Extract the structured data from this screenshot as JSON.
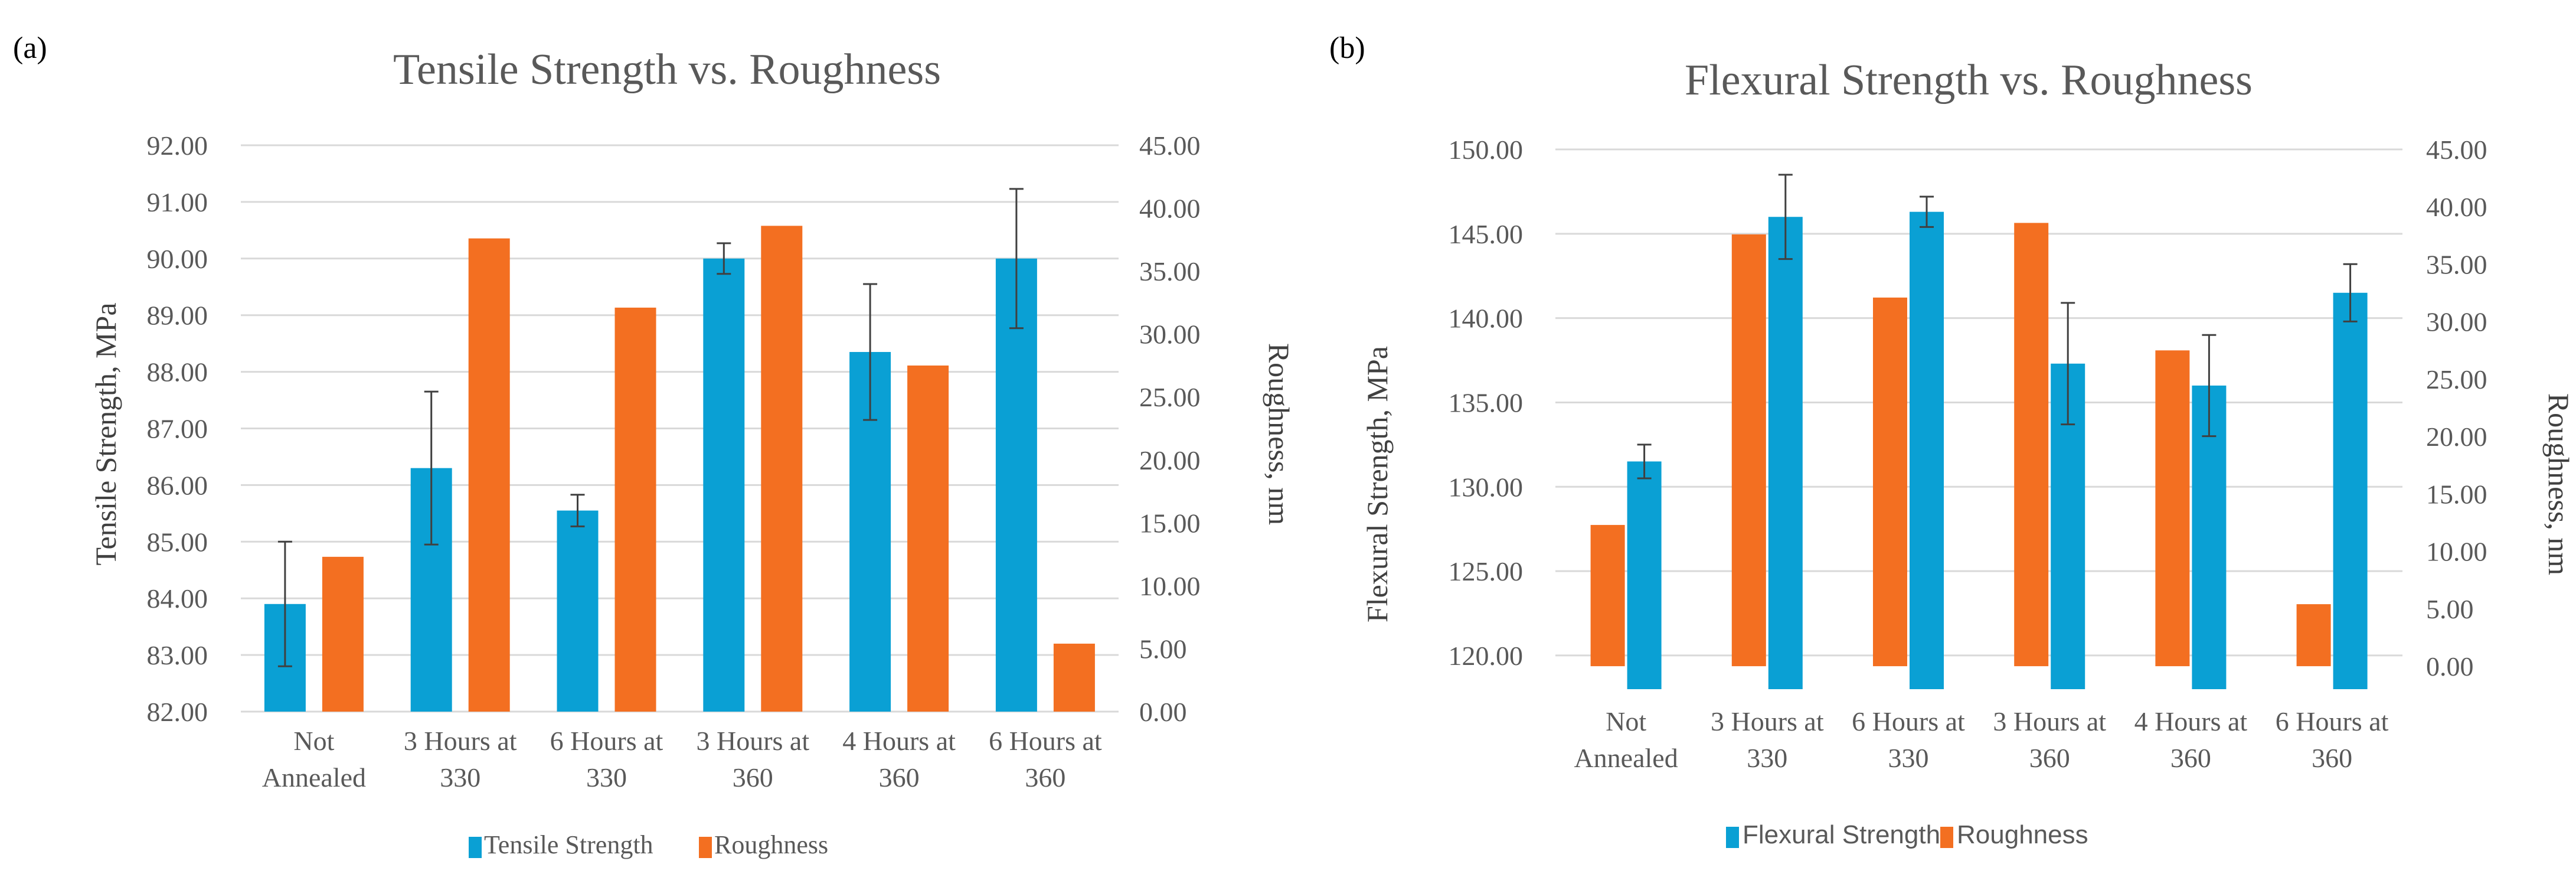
{
  "panels": [
    {
      "label": "(a)"
    },
    {
      "label": "(b)"
    }
  ],
  "colors": {
    "strength": "#0aa0d4",
    "roughness": "#f36f21",
    "gridline": "#d9d9d9",
    "text": "#595959"
  },
  "chart_data": [
    {
      "type": "bar",
      "title": "Tensile Strength vs. Roughness",
      "categories": [
        [
          "Not",
          "Annealed"
        ],
        [
          "3 Hours at",
          "330"
        ],
        [
          "6 Hours at",
          "330"
        ],
        [
          "3 Hours at",
          "360"
        ],
        [
          "4 Hours at",
          "360"
        ],
        [
          "6 Hours at",
          "360"
        ]
      ],
      "ylabel": "Tensile Strength, MPa",
      "y2label": "Roughness, nm",
      "ylim": [
        82,
        92
      ],
      "y2lim": [
        0,
        45
      ],
      "yticks": [
        "82.00",
        "83.00",
        "84.00",
        "85.00",
        "86.00",
        "87.00",
        "88.00",
        "89.00",
        "90.00",
        "91.00",
        "92.00"
      ],
      "y2ticks": [
        "0.00",
        "5.00",
        "10.00",
        "15.00",
        "20.00",
        "25.00",
        "30.00",
        "35.00",
        "40.00",
        "45.00"
      ],
      "series": [
        {
          "name": "Tensile Strength",
          "axis": "left",
          "color": "#0aa0d4",
          "values": [
            83.9,
            86.3,
            85.55,
            90.0,
            88.35,
            90.0
          ],
          "errors": [
            1.1,
            1.35,
            0.28,
            0.27,
            1.2,
            1.23
          ]
        },
        {
          "name": "Roughness",
          "axis": "right",
          "color": "#f36f21",
          "values": [
            12.3,
            37.6,
            32.1,
            38.6,
            27.5,
            5.4
          ]
        }
      ],
      "legend": {
        "position": "bottom",
        "order": [
          "Tensile Strength",
          "Roughness"
        ]
      },
      "grid": true
    },
    {
      "type": "bar",
      "title": "Flexural Strength vs. Roughness",
      "categories": [
        [
          "Not",
          "Annealed"
        ],
        [
          "3 Hours at",
          "330"
        ],
        [
          "6 Hours at",
          "330"
        ],
        [
          "3 Hours at",
          "360"
        ],
        [
          "4 Hours at",
          "360"
        ],
        [
          "6 Hours at",
          "360"
        ]
      ],
      "ylabel": "Flexural Strength, MPa",
      "y2label": "Roughness, nm",
      "ylim": [
        118,
        150
      ],
      "y2lim": [
        -2,
        45
      ],
      "yticks": [
        "120.00",
        "125.00",
        "130.00",
        "135.00",
        "140.00",
        "145.00",
        "150.00"
      ],
      "y2ticks": [
        "0.00",
        "5.00",
        "10.00",
        "15.00",
        "20.00",
        "25.00",
        "30.00",
        "35.00",
        "40.00",
        "45.00"
      ],
      "series": [
        {
          "name": "Roughness",
          "axis": "right",
          "color": "#f36f21",
          "values": [
            12.3,
            37.6,
            32.1,
            38.6,
            27.5,
            5.4
          ]
        },
        {
          "name": "Flexural Strength",
          "axis": "left",
          "color": "#0aa0d4",
          "values": [
            131.5,
            146.0,
            146.3,
            137.3,
            136.0,
            141.5
          ],
          "errors": [
            1.0,
            2.5,
            0.9,
            3.6,
            3.0,
            1.7
          ]
        }
      ],
      "legend": {
        "position": "bottom",
        "order": [
          "Flexural Strength",
          "Roughness"
        ]
      },
      "grid": true
    }
  ]
}
